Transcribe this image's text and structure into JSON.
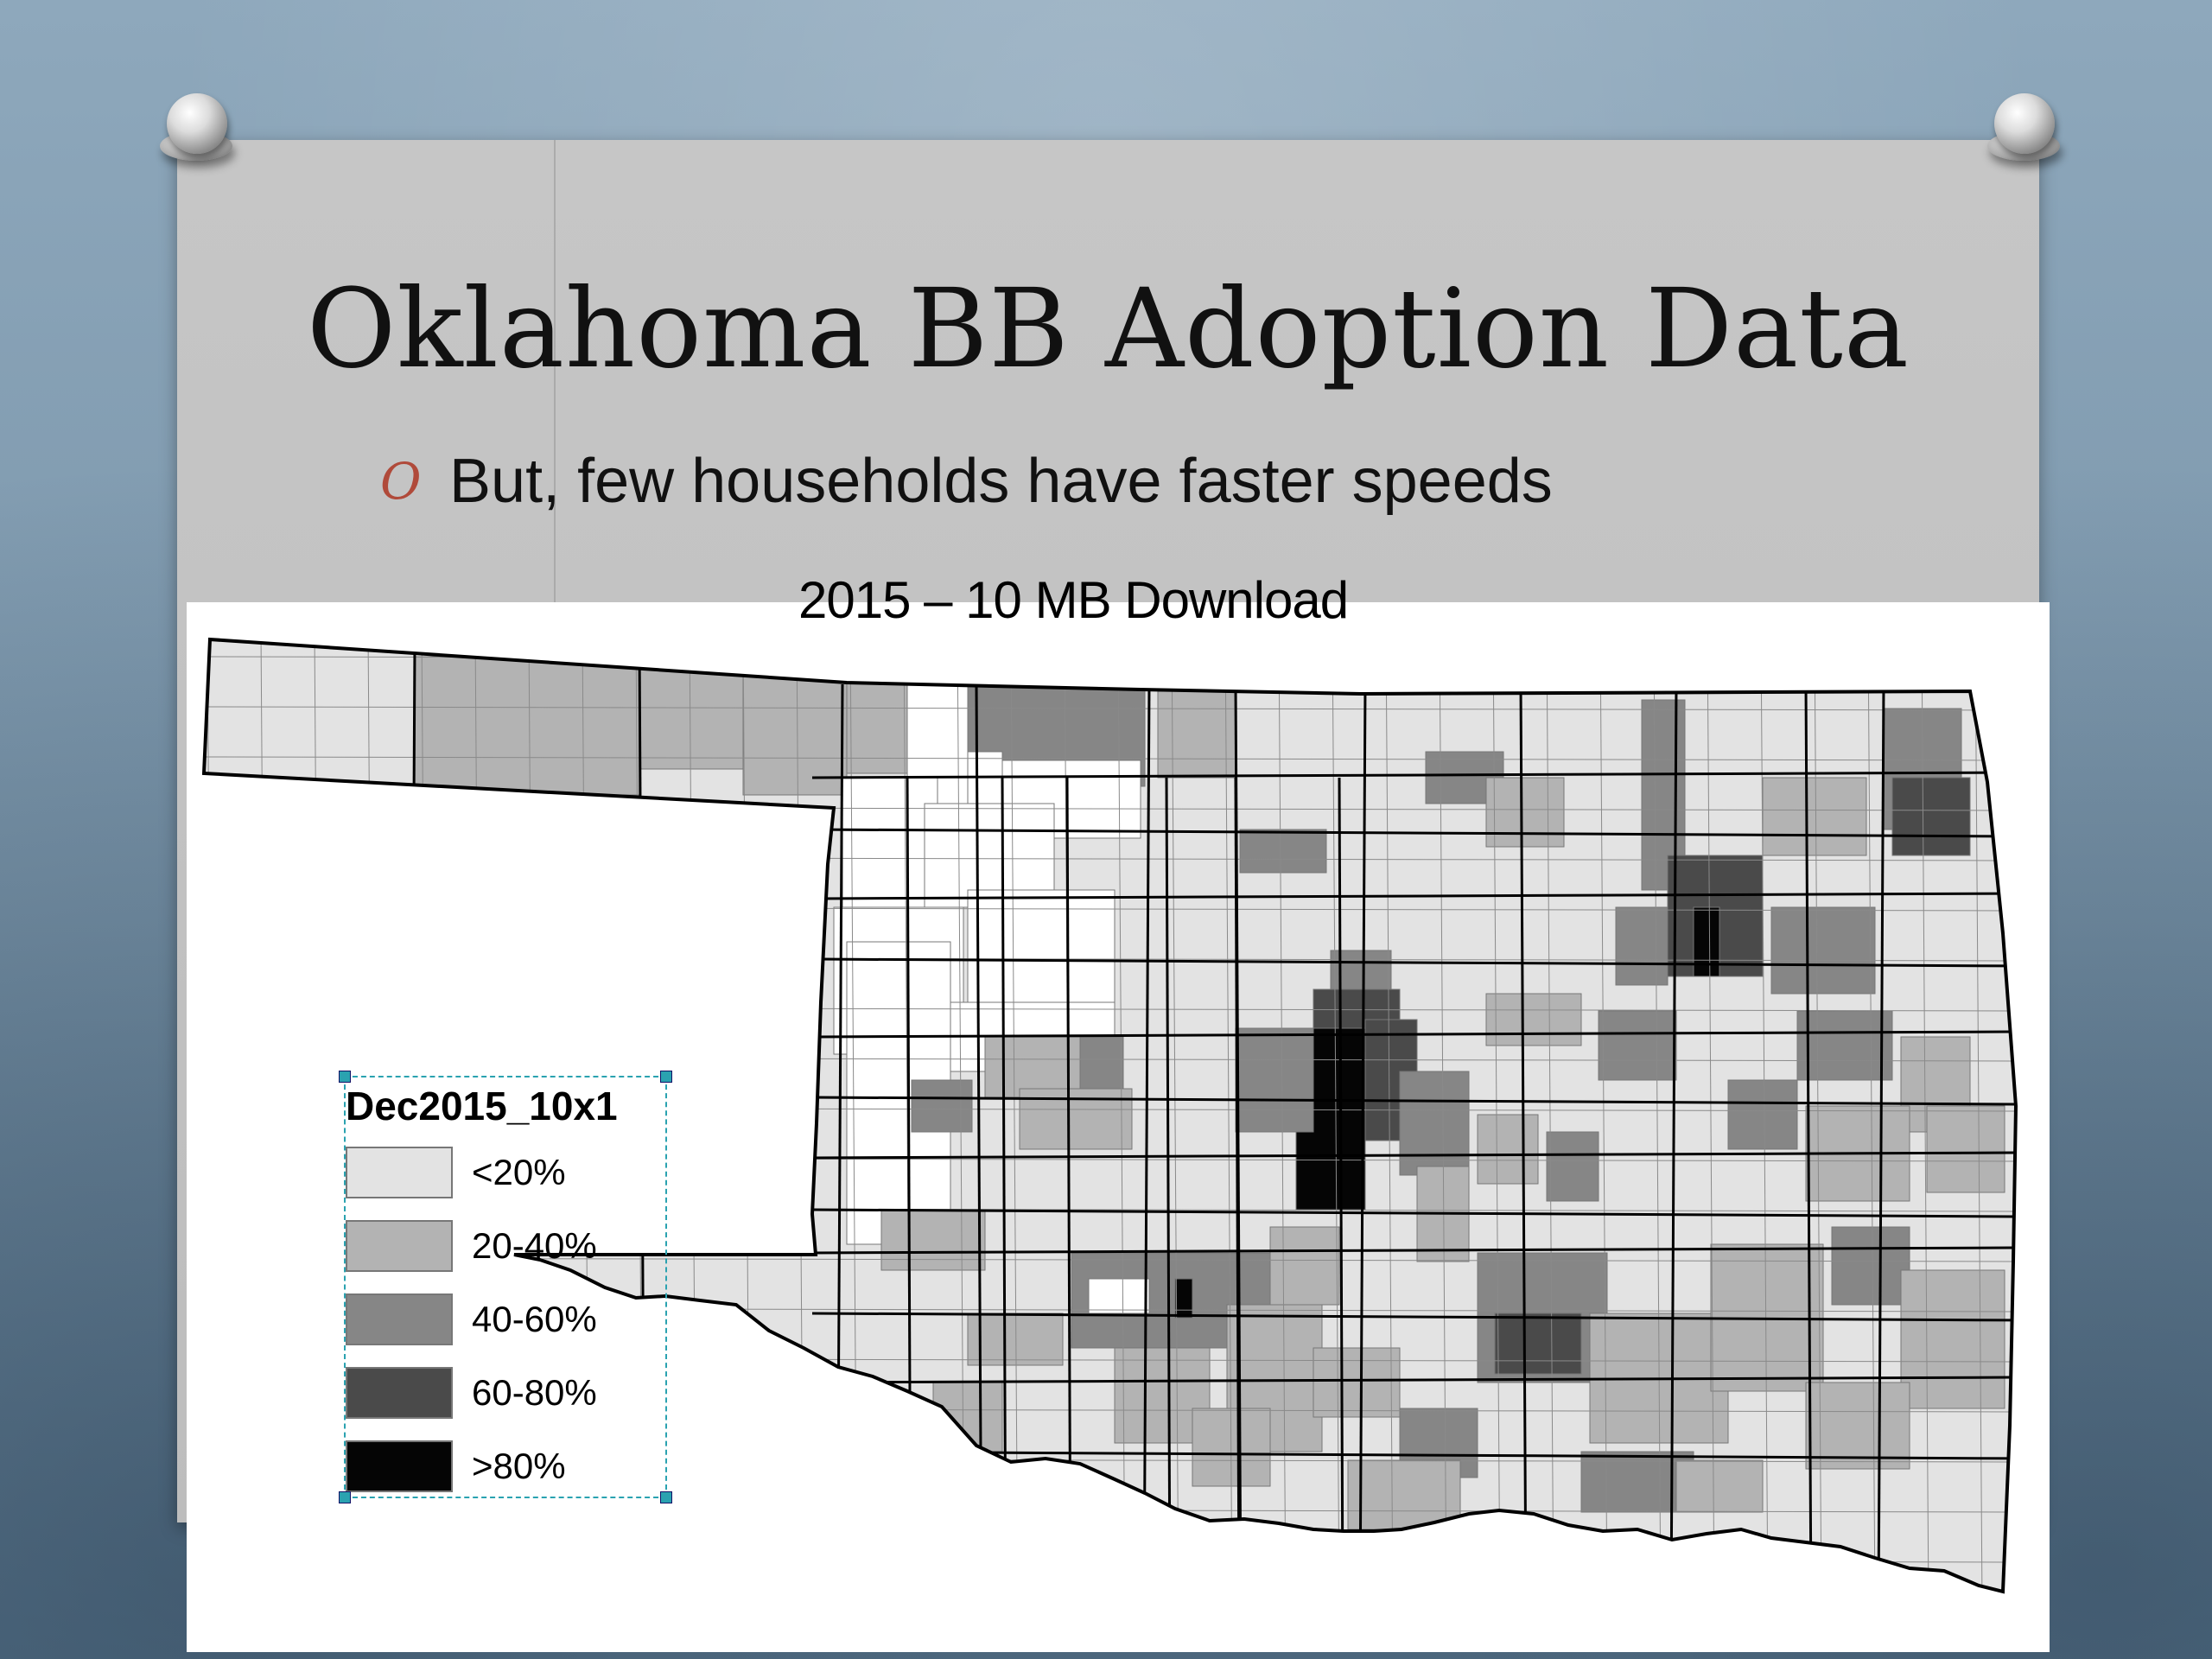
{
  "slide": {
    "title": "Oklahoma BB Adoption Data",
    "bullet": {
      "marker": "O",
      "text": "But, few households have faster speeds"
    }
  },
  "map": {
    "title": "2015 – 10 MB Download",
    "region": "Oklahoma",
    "unit": "census tract",
    "legend": {
      "title": "Dec2015_10x1",
      "items": [
        {
          "label": "<20%",
          "color": "#e3e3e3"
        },
        {
          "label": "20-40%",
          "color": "#b3b3b3"
        },
        {
          "label": "40-60%",
          "color": "#868686"
        },
        {
          "label": "60-80%",
          "color": "#4a4a4a"
        },
        {
          "label": ">80%",
          "color": "#050505"
        }
      ]
    },
    "uncolored_color": "#ffffff",
    "boundary_color": "#000000"
  }
}
